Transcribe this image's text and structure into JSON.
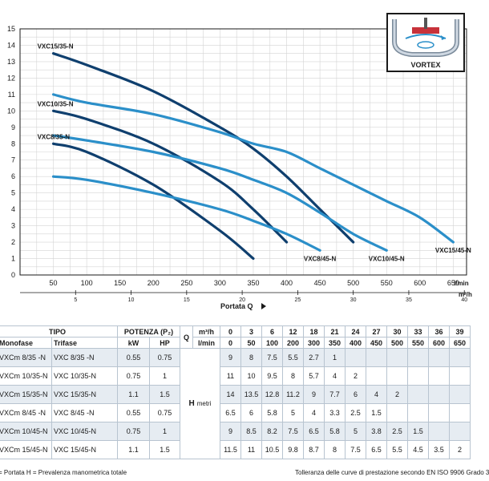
{
  "chart_data": {
    "type": "line",
    "xlabel": "Portata Q",
    "ylabel": "",
    "x_unit_primary": "l/min",
    "x_unit_secondary": "m³/h",
    "xlim": [
      0,
      670
    ],
    "ylim": [
      0,
      15
    ],
    "x_ticks": [
      50,
      100,
      150,
      200,
      250,
      300,
      350,
      400,
      450,
      500,
      550,
      600,
      650
    ],
    "x2_ticks": [
      5,
      10,
      15,
      20,
      25,
      30,
      35,
      40
    ],
    "y_ticks": [
      0,
      1,
      2,
      3,
      4,
      5,
      6,
      7,
      8,
      9,
      10,
      11,
      12,
      13,
      14,
      15
    ],
    "grid": true,
    "series": [
      {
        "name": "VXC8/35-N",
        "label_pos": "left",
        "color": "#0f3f6e",
        "x": [
          50,
          100,
          200,
          300,
          350
        ],
        "y": [
          8,
          7.5,
          5.5,
          2.7,
          1
        ]
      },
      {
        "name": "VXC10/35-N",
        "label_pos": "left",
        "color": "#0f3f6e",
        "x": [
          50,
          100,
          200,
          300,
          350,
          400
        ],
        "y": [
          10,
          9.5,
          8,
          5.7,
          4,
          2
        ]
      },
      {
        "name": "VXC15/35-N",
        "label_pos": "left",
        "color": "#0f3f6e",
        "x": [
          50,
          100,
          200,
          300,
          350,
          400,
          450,
          500
        ],
        "y": [
          13.5,
          12.8,
          11.2,
          9,
          7.7,
          6,
          4,
          2
        ]
      },
      {
        "name": "VXC8/45-N",
        "label_pos": "end",
        "color": "#2b8fc9",
        "x": [
          50,
          100,
          200,
          300,
          350,
          400,
          450
        ],
        "y": [
          6,
          5.8,
          5,
          4,
          3.3,
          2.5,
          1.5
        ]
      },
      {
        "name": "VXC10/45-N",
        "label_pos": "end",
        "color": "#2b8fc9",
        "x": [
          50,
          100,
          200,
          300,
          350,
          400,
          450,
          500,
          550
        ],
        "y": [
          8.5,
          8.2,
          7.5,
          6.5,
          5.8,
          5,
          3.8,
          2.5,
          1.5
        ]
      },
      {
        "name": "VXC15/45-N",
        "label_pos": "end",
        "color": "#2b8fc9",
        "x": [
          50,
          100,
          200,
          300,
          350,
          400,
          450,
          500,
          550,
          600,
          650
        ],
        "y": [
          11,
          10.5,
          9.8,
          8.7,
          8,
          7.5,
          6.5,
          5.5,
          4.5,
          3.5,
          2
        ]
      }
    ]
  },
  "inset": {
    "label": "VORTEX"
  },
  "table": {
    "header1": {
      "tipo": "TIPO",
      "potenza": "POTENZA (P₂)",
      "q": "Q",
      "m3h": "m³/h",
      "lmin": "l/min"
    },
    "header2": {
      "monofase": "Monofase",
      "trifase": "Trifase",
      "kw": "kW",
      "hp": "HP"
    },
    "m3h_values": [
      "0",
      "3",
      "6",
      "12",
      "18",
      "21",
      "24",
      "27",
      "30",
      "33",
      "36",
      "39"
    ],
    "lmin_values": [
      "0",
      "50",
      "100",
      "200",
      "300",
      "350",
      "400",
      "450",
      "500",
      "550",
      "600",
      "650"
    ],
    "h_label": "H",
    "h_unit": "metri",
    "rows": [
      {
        "mono": "VXCm 8/35 -N",
        "tri": "VXC 8/35 -N",
        "kw": "0.55",
        "hp": "0.75",
        "h": [
          "9",
          "8",
          "7.5",
          "5.5",
          "2.7",
          "1",
          "",
          "",
          "",
          "",
          "",
          ""
        ]
      },
      {
        "mono": "VXCm 10/35-N",
        "tri": "VXC 10/35-N",
        "kw": "0.75",
        "hp": "1",
        "h": [
          "11",
          "10",
          "9.5",
          "8",
          "5.7",
          "4",
          "2",
          "",
          "",
          "",
          "",
          ""
        ]
      },
      {
        "mono": "VXCm 15/35-N",
        "tri": "VXC 15/35-N",
        "kw": "1.1",
        "hp": "1.5",
        "h": [
          "14",
          "13.5",
          "12.8",
          "11.2",
          "9",
          "7.7",
          "6",
          "4",
          "2",
          "",
          "",
          ""
        ]
      },
      {
        "mono": "VXCm 8/45 -N",
        "tri": "VXC 8/45 -N",
        "kw": "0.55",
        "hp": "0.75",
        "h": [
          "6.5",
          "6",
          "5.8",
          "5",
          "4",
          "3.3",
          "2.5",
          "1.5",
          "",
          "",
          "",
          ""
        ]
      },
      {
        "mono": "VXCm 10/45-N",
        "tri": "VXC 10/45-N",
        "kw": "0.75",
        "hp": "1",
        "h": [
          "9",
          "8.5",
          "8.2",
          "7.5",
          "6.5",
          "5.8",
          "5",
          "3.8",
          "2.5",
          "1.5",
          "",
          ""
        ]
      },
      {
        "mono": "VXCm 15/45-N",
        "tri": "VXC 15/45-N",
        "kw": "1.1",
        "hp": "1.5",
        "h": [
          "11.5",
          "11",
          "10.5",
          "9.8",
          "8.7",
          "8",
          "7.5",
          "6.5",
          "5.5",
          "4.5",
          "3.5",
          "2"
        ]
      }
    ]
  },
  "footer": {
    "left": "= Portata  H = Prevalenza manometrica totale",
    "right": "Tolleranza delle curve di prestazione secondo EN ISO 9906 Grado 3"
  }
}
